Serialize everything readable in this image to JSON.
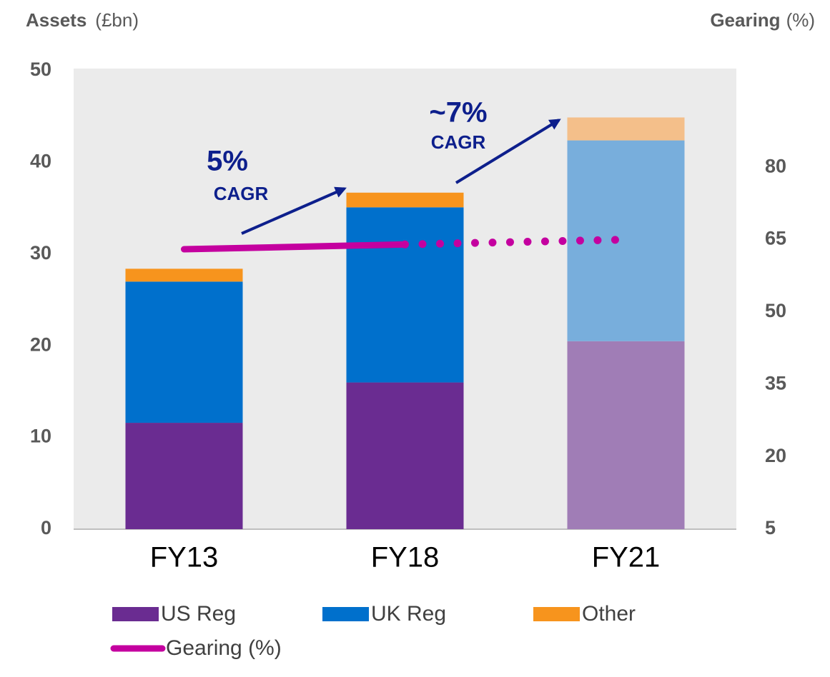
{
  "chart_data": {
    "type": "stacked_bar_line",
    "y_label": "Assets",
    "y_unit": "(£bn)",
    "y2_label": "Gearing",
    "y2_unit": "(%)",
    "categories": [
      "FY13",
      "FY18",
      "FY21"
    ],
    "series": [
      {
        "name": "US Reg",
        "color": "#6a2c91",
        "colors": [
          "#6a2c91",
          "#6a2c91",
          "#a07db6"
        ],
        "values": [
          11.6,
          16.0,
          20.5
        ]
      },
      {
        "name": "UK Reg",
        "color": "#0070cc",
        "colors": [
          "#0070cc",
          "#0070cc",
          "#78aedc"
        ],
        "values": [
          15.4,
          19.1,
          21.9
        ]
      },
      {
        "name": "Other",
        "color": "#f7941d",
        "colors": [
          "#f7941d",
          "#f7941d",
          "#f4bf8a"
        ],
        "values": [
          1.4,
          1.6,
          2.5
        ]
      },
      {
        "name": "Gearing (%)",
        "type": "line",
        "axis": "y2",
        "color": "#c4009f",
        "dotted_from": 1,
        "values": [
          63,
          64,
          65
        ]
      }
    ],
    "annotations": [
      "5%",
      "CAGR",
      "~7%",
      "CAGR"
    ],
    "ylim": [
      0,
      50
    ],
    "yticks": [
      0,
      10,
      20,
      30,
      40,
      50
    ],
    "y2lim": [
      5,
      100
    ],
    "y2ticks": [
      5,
      20,
      35,
      50,
      65,
      80
    ],
    "grid": false
  }
}
